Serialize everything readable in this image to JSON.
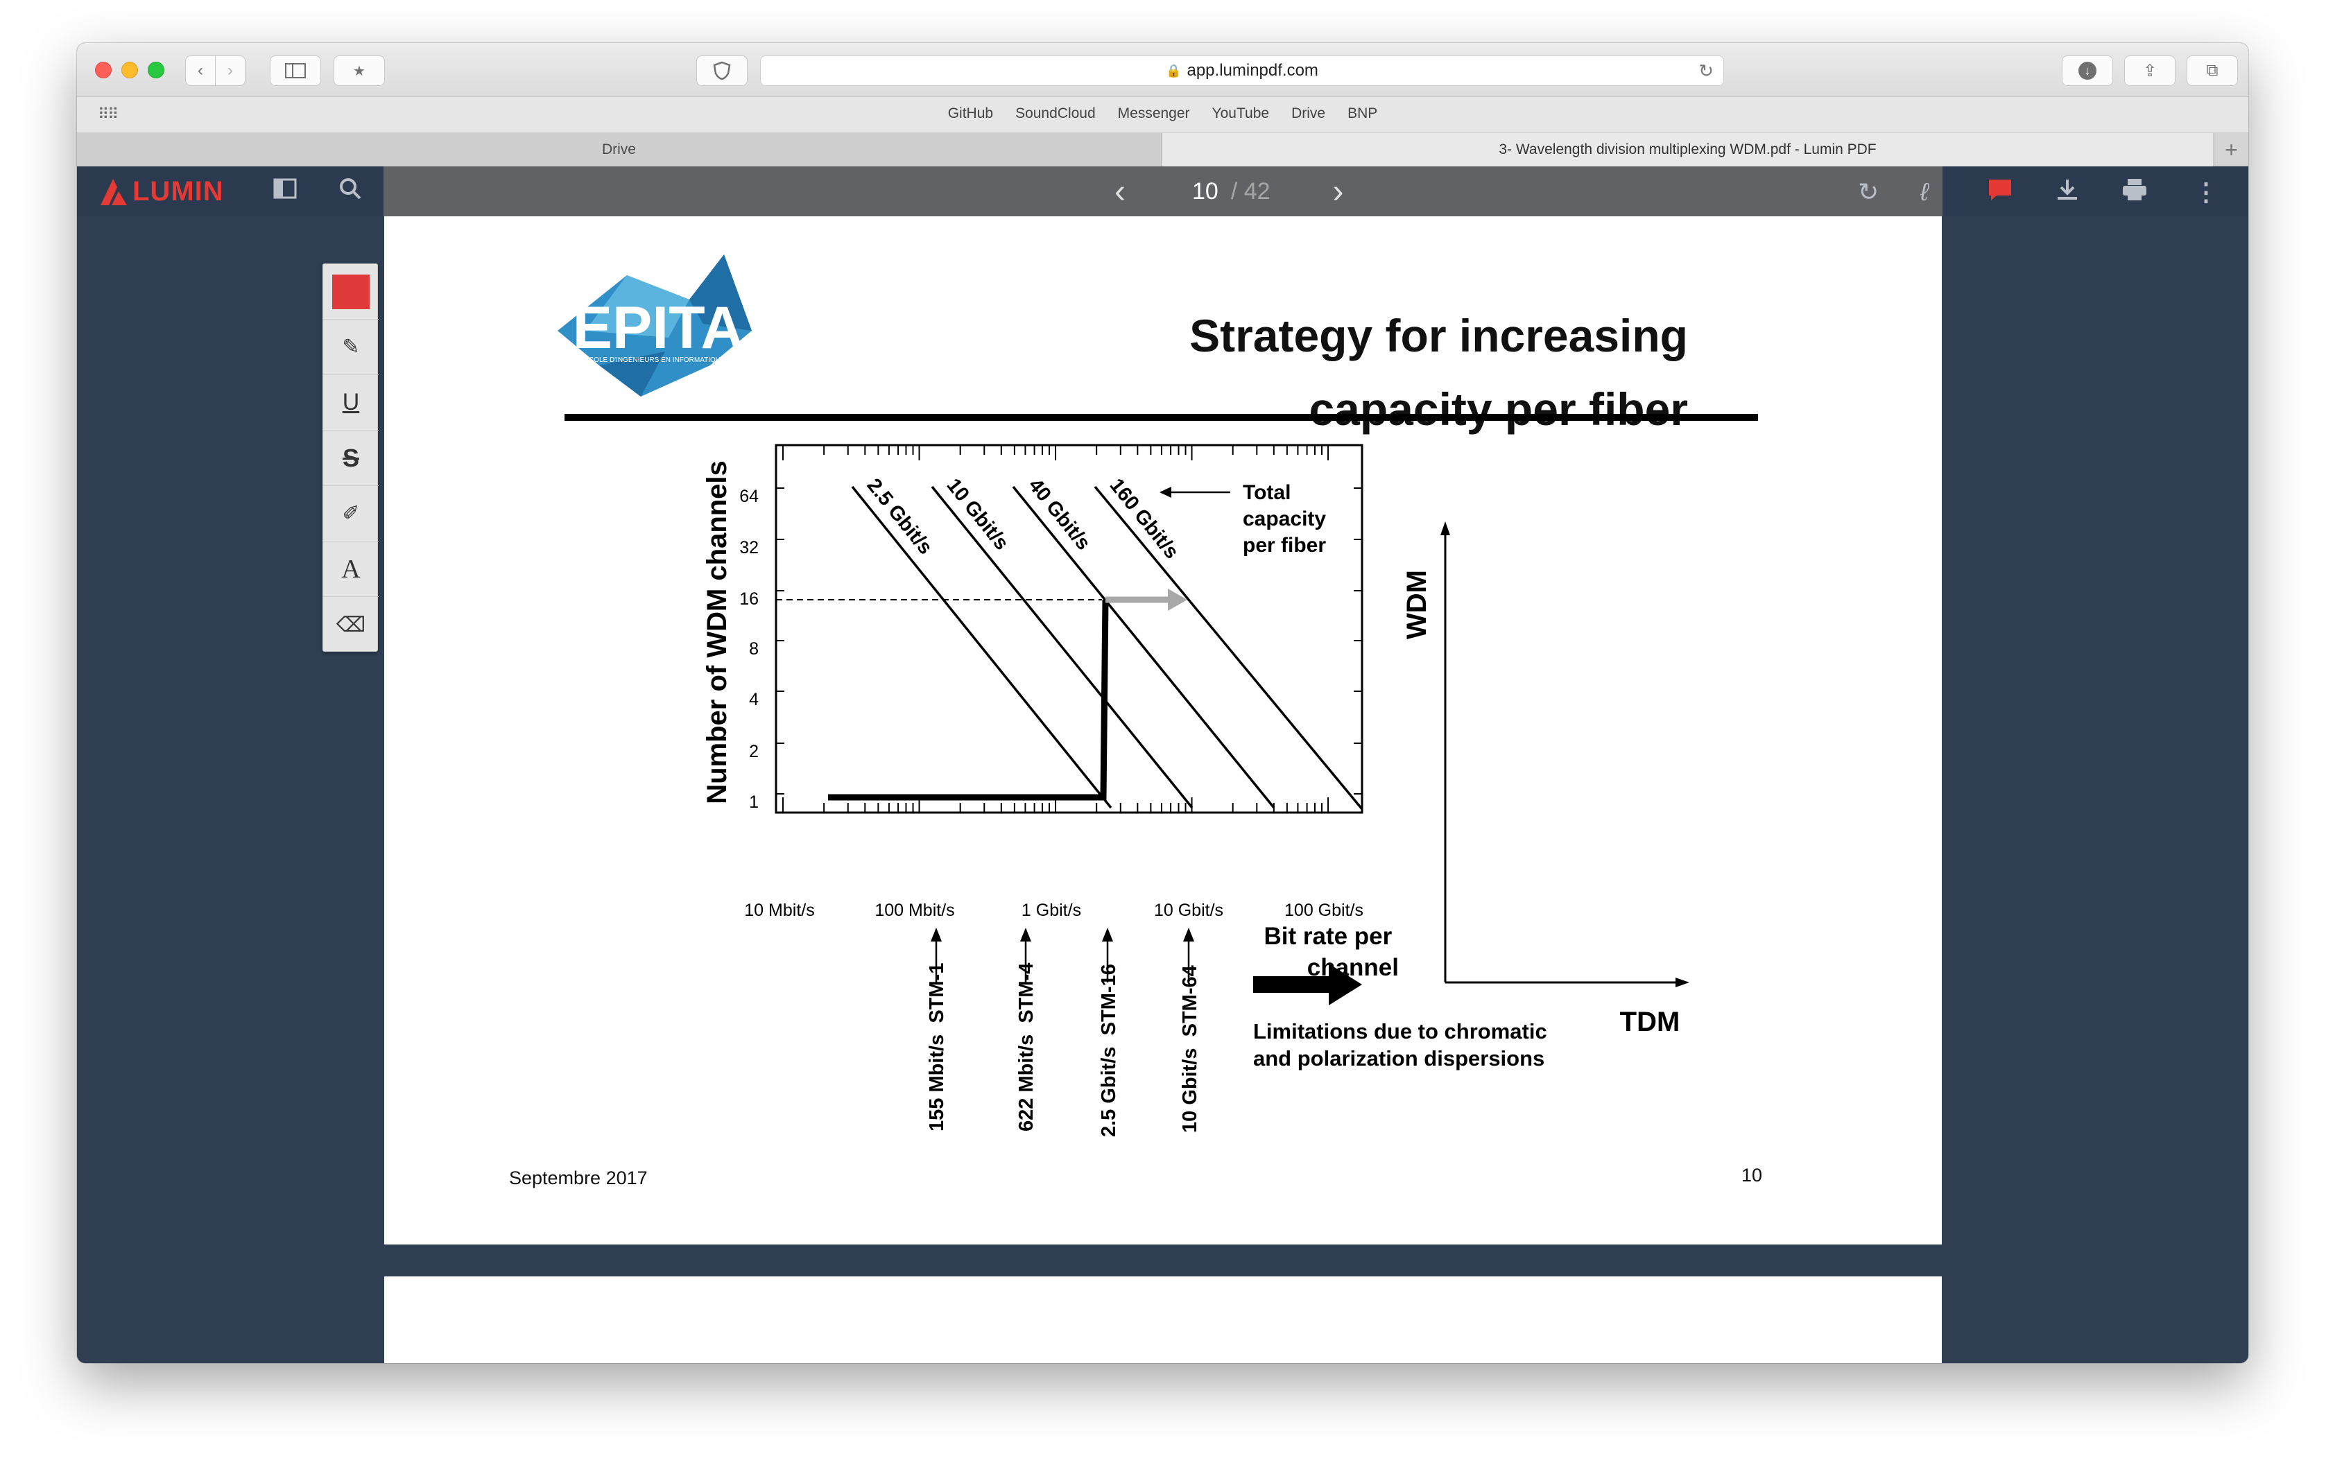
{
  "browser": {
    "url": "app.luminpdf.com",
    "favorites": [
      "GitHub",
      "SoundCloud",
      "Messenger",
      "YouTube",
      "Drive",
      "BNP"
    ],
    "tabs": [
      {
        "title": "Drive"
      },
      {
        "title": "3- Wavelength division multiplexing WDM.pdf - Lumin PDF"
      }
    ]
  },
  "app": {
    "brand": "LUMIN",
    "page_current": "10",
    "page_total": "/ 42",
    "accent_color": "#e53935"
  },
  "slide": {
    "logo_text": "EPITA",
    "logo_subtext": "ÉCOLE D'INGÉNIEURS EN INFORMATIQUE",
    "title_line1": "Strategy for increasing",
    "title_line2": "capacity per fiber",
    "footer_date": "Septembre 2017",
    "footer_page": "10"
  },
  "chart_data": {
    "type": "line",
    "ylabel": "Number of WDM channels",
    "xlabel": "Bit rate per channel",
    "x_scale": "log",
    "y_scale": "log",
    "x_ticks": [
      "10 Mbit/s",
      "100 Mbit/s",
      "1 Gbit/s",
      "10 Gbit/s",
      "100 Gbit/s"
    ],
    "y_ticks": [
      "64",
      "32",
      "16",
      "8",
      "4",
      "2",
      "1"
    ],
    "series": [
      {
        "name": "2.5 Gbit/s"
      },
      {
        "name": "10 Gbit/s"
      },
      {
        "name": "40 Gbit/s"
      },
      {
        "name": "160 Gbit/s"
      }
    ],
    "annotation_total": [
      "Total",
      "capacity",
      "per fiber"
    ],
    "stm_markers": [
      {
        "label": "155 Mbit/s  STM-1",
        "x": "155 Mbit/s"
      },
      {
        "label": "622 Mbit/s  STM-4",
        "x": "622 Mbit/s"
      },
      {
        "label": "2.5 Gbit/s  STM-16",
        "x": "2.5 Gbit/s"
      },
      {
        "label": "10 Gbit/s  STM-64",
        "x": "10 Gbit/s"
      }
    ],
    "limitations": [
      "Limitations due to chromatic",
      "and polarization dispersions"
    ],
    "axes_diagram": {
      "y": "WDM",
      "x": "TDM"
    }
  }
}
